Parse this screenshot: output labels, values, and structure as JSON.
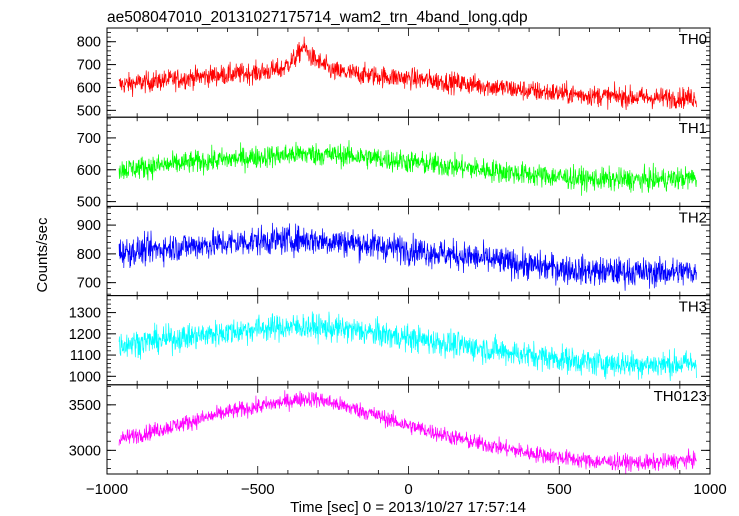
{
  "chart_data": {
    "type": "line",
    "title": "ae508047010_20131027175714_wam2_trn_4band_long.qdp",
    "xlabel": "Time [sec] 0 = 2013/10/27 17:57:14",
    "ylabel": "Counts/sec",
    "xlim": [
      -1000,
      1000
    ],
    "xticks": [
      -1000,
      -500,
      0,
      500,
      1000
    ],
    "xtick_labels": [
      "−1000",
      "−500",
      "0",
      "500",
      "1000"
    ],
    "x_range_data": [
      -960,
      955
    ],
    "panels": [
      {
        "name": "TH0",
        "color": "#ff0000",
        "ylim": [
          470,
          860
        ],
        "yticks": [
          500,
          600,
          700,
          800
        ],
        "ytick_labels": [
          "500",
          "600",
          "700",
          "800"
        ],
        "trend_x": [
          -960,
          -800,
          -650,
          -500,
          -420,
          -370,
          -350,
          -320,
          -250,
          -100,
          0,
          200,
          400,
          600,
          800,
          955
        ],
        "trend_y": [
          612,
          632,
          652,
          665,
          680,
          735,
          780,
          730,
          670,
          650,
          640,
          615,
          585,
          565,
          555,
          555
        ],
        "noise": 38
      },
      {
        "name": "TH1",
        "color": "#00ff00",
        "ylim": [
          485,
          765
        ],
        "yticks": [
          500,
          600,
          700
        ],
        "ytick_labels": [
          "500",
          "600",
          "700"
        ],
        "trend_x": [
          -960,
          -700,
          -500,
          -350,
          -200,
          0,
          200,
          400,
          600,
          800,
          955
        ],
        "trend_y": [
          600,
          625,
          640,
          650,
          645,
          625,
          605,
          585,
          570,
          568,
          575
        ],
        "noise": 30
      },
      {
        "name": "TH2",
        "color": "#0000ff",
        "ylim": [
          655,
          965
        ],
        "yticks": [
          700,
          800,
          900
        ],
        "ytick_labels": [
          "700",
          "800",
          "900"
        ],
        "trend_x": [
          -960,
          -700,
          -500,
          -350,
          -200,
          0,
          200,
          400,
          600,
          800,
          955
        ],
        "trend_y": [
          805,
          830,
          845,
          850,
          840,
          815,
          790,
          760,
          740,
          735,
          738
        ],
        "noise": 42
      },
      {
        "name": "TH3",
        "color": "#00ffff",
        "ylim": [
          960,
          1380
        ],
        "yticks": [
          1000,
          1100,
          1200,
          1300
        ],
        "ytick_labels": [
          "1000",
          "1100",
          "1200",
          "1300"
        ],
        "trend_x": [
          -960,
          -700,
          -500,
          -350,
          -200,
          0,
          200,
          400,
          600,
          800,
          955
        ],
        "trend_y": [
          1150,
          1190,
          1225,
          1235,
          1220,
          1180,
          1140,
          1100,
          1065,
          1055,
          1060
        ],
        "noise": 52
      },
      {
        "name": "TH0123",
        "color": "#ff00ff",
        "ylim": [
          2740,
          3720
        ],
        "yticks": [
          3000,
          3500
        ],
        "ytick_labels": [
          "3000",
          "3500"
        ],
        "trend_x": [
          -960,
          -800,
          -600,
          -450,
          -350,
          -300,
          -150,
          0,
          200,
          400,
          600,
          800,
          955
        ],
        "trend_y": [
          3120,
          3250,
          3420,
          3510,
          3570,
          3560,
          3430,
          3270,
          3100,
          2970,
          2880,
          2860,
          2900
        ],
        "noise": 75
      }
    ]
  }
}
